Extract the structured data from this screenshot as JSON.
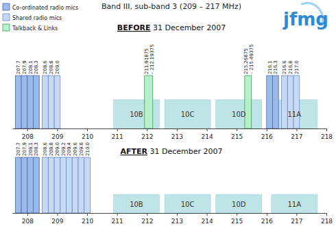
{
  "title": "Band III, sub-band 3 (209 – 217 MHz)",
  "logo": "jfmg",
  "legend_items": [
    {
      "name": "Co-ordinated radio mics",
      "color": "#9db9ea"
    },
    {
      "name": "Shared radio mics",
      "color": "#c6daf5"
    },
    {
      "name": "Talkback & Links",
      "color": "#b6efc8"
    }
  ],
  "chart_data": [
    {
      "type": "bar",
      "title": "BEFORE 31 December 2007",
      "xlim": [
        207.5,
        218
      ],
      "xticks": [
        208,
        209,
        210,
        211,
        212,
        213,
        214,
        215,
        216,
        217,
        218
      ],
      "co_ordinated_mics": {
        "values": [
          207.7,
          207.9,
          208.1,
          208.3,
          216.1,
          216.3
        ],
        "value_labels": [
          "207.7",
          "207.9",
          "208.1",
          "208.3",
          "216.1",
          "216.3"
        ]
      },
      "shared_mics": {
        "values": [
          208.6,
          208.8,
          209.0,
          216.6,
          216.8,
          217.0
        ],
        "value_labels": [
          "208.6",
          "208.8",
          "209.0",
          "216.6",
          "216.8",
          "217.0"
        ]
      },
      "talkback_links": {
        "ranges": [
          [
            211.91875,
            212.19375
          ],
          [
            215.26875,
            215.49375
          ]
        ],
        "range_labels": [
          "211.91875 – 212.19375",
          "215.26875 – 215.49375"
        ]
      },
      "channels": {
        "color": "#bfe4e8",
        "labels": [
          "10B",
          "10C",
          "10D",
          "11A"
        ],
        "ranges": [
          [
            210.88,
            212.416
          ],
          [
            212.592,
            214.128
          ],
          [
            214.304,
            215.84
          ],
          [
            216.16,
            217.696
          ]
        ]
      }
    },
    {
      "type": "bar",
      "title": "AFTER 31 December 2007",
      "xlim": [
        207.5,
        218
      ],
      "xticks": [
        208,
        209,
        210,
        211,
        212,
        213,
        214,
        215,
        216,
        217,
        218
      ],
      "co_ordinated_mics": {
        "values": [
          207.7,
          207.9,
          208.1,
          208.3
        ],
        "value_labels": [
          "207.7",
          "207.9",
          "208.1",
          "208.3"
        ]
      },
      "shared_mics": {
        "values": [
          208.6,
          208.8,
          209.0,
          209.2,
          209.4,
          209.6,
          209.8,
          210.0
        ],
        "value_labels": [
          "208.6",
          "208.8",
          "209.0",
          "209.2",
          "209.4",
          "209.6",
          "209.8",
          "210.0"
        ]
      },
      "talkback_links": {
        "ranges": [],
        "range_labels": []
      },
      "channels": {
        "color": "#bfe4e8",
        "labels": [
          "10B",
          "10C",
          "10D",
          "11A"
        ],
        "ranges": [
          [
            210.88,
            212.416
          ],
          [
            212.592,
            214.128
          ],
          [
            214.304,
            215.84
          ],
          [
            216.16,
            217.696
          ]
        ]
      }
    }
  ]
}
